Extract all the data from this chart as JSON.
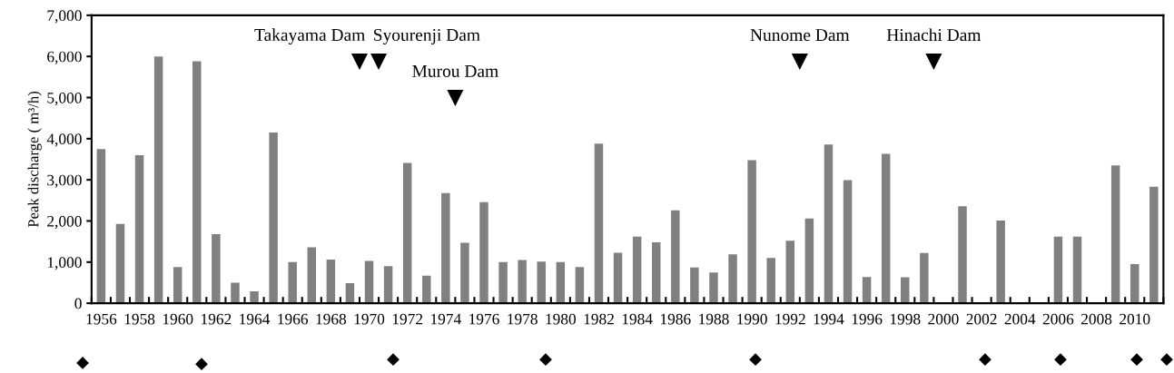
{
  "chart_data": [
    {
      "type": "bar",
      "ylabel": "Peak discharge ( m³/h)",
      "x": [
        1956,
        1957,
        1958,
        1959,
        1960,
        1961,
        1962,
        1963,
        1964,
        1965,
        1966,
        1967,
        1968,
        1969,
        1970,
        1971,
        1972,
        1973,
        1974,
        1975,
        1976,
        1977,
        1978,
        1979,
        1980,
        1981,
        1982,
        1983,
        1984,
        1985,
        1986,
        1987,
        1988,
        1989,
        1990,
        1991,
        1992,
        1993,
        1994,
        1995,
        1996,
        1997,
        1998,
        1999,
        2000,
        2001,
        2002,
        2003,
        2004,
        2005,
        2006,
        2007,
        2008,
        2009,
        2010,
        2011
      ],
      "series": [
        {
          "color": "#808080",
          "values": [
            3750,
            1930,
            3600,
            6000,
            880,
            5880,
            1680,
            500,
            290,
            4150,
            1000,
            1360,
            1060,
            490,
            1030,
            900,
            3410,
            670,
            2680,
            1470,
            2460,
            1000,
            1050,
            1010,
            1000,
            880,
            3880,
            1230,
            1620,
            1480,
            2260,
            870,
            750,
            1190,
            3480,
            1100,
            1520,
            2060,
            3860,
            2990,
            640,
            3630,
            630,
            1220,
            null,
            2360,
            null,
            2010,
            null,
            null,
            1620,
            1620,
            null,
            3350,
            950,
            2830
          ]
        },
        {
          "type": "scatter",
          "color": "#000000",
          "marker": "triangle",
          "x": [
            1969.5,
            1970.5,
            1974.5,
            1992.5,
            1999.5
          ],
          "values": [
            5870,
            5870,
            4990,
            5870,
            5870
          ]
        }
      ],
      "xlim": [
        1955.5,
        2011.5
      ],
      "xticks": [
        1956,
        1958,
        1960,
        1962,
        1964,
        1966,
        1968,
        1970,
        1972,
        1974,
        1976,
        1978,
        1980,
        1982,
        1984,
        1986,
        1988,
        1990,
        1992,
        1994,
        1996,
        1998,
        2000,
        2002,
        2004,
        2006,
        2008,
        2010
      ],
      "ylim": [
        0,
        7000
      ],
      "yticks": [
        0,
        {
          "value": 1000,
          "label": "1,000"
        },
        {
          "value": 2000,
          "label": "2,000"
        },
        {
          "value": 3000,
          "label": "3,000"
        },
        {
          "value": 4000,
          "label": "4,000"
        },
        {
          "value": 5000,
          "label": "5,000"
        },
        {
          "value": 6000,
          "label": "6,000"
        },
        {
          "value": 7000,
          "label": "7,000"
        }
      ],
      "annotations": [
        "Takayama Dam",
        "Syourenji Dam",
        "Murou Dam",
        "Nunome Dam",
        "Hinachi Dam"
      ]
    }
  ]
}
